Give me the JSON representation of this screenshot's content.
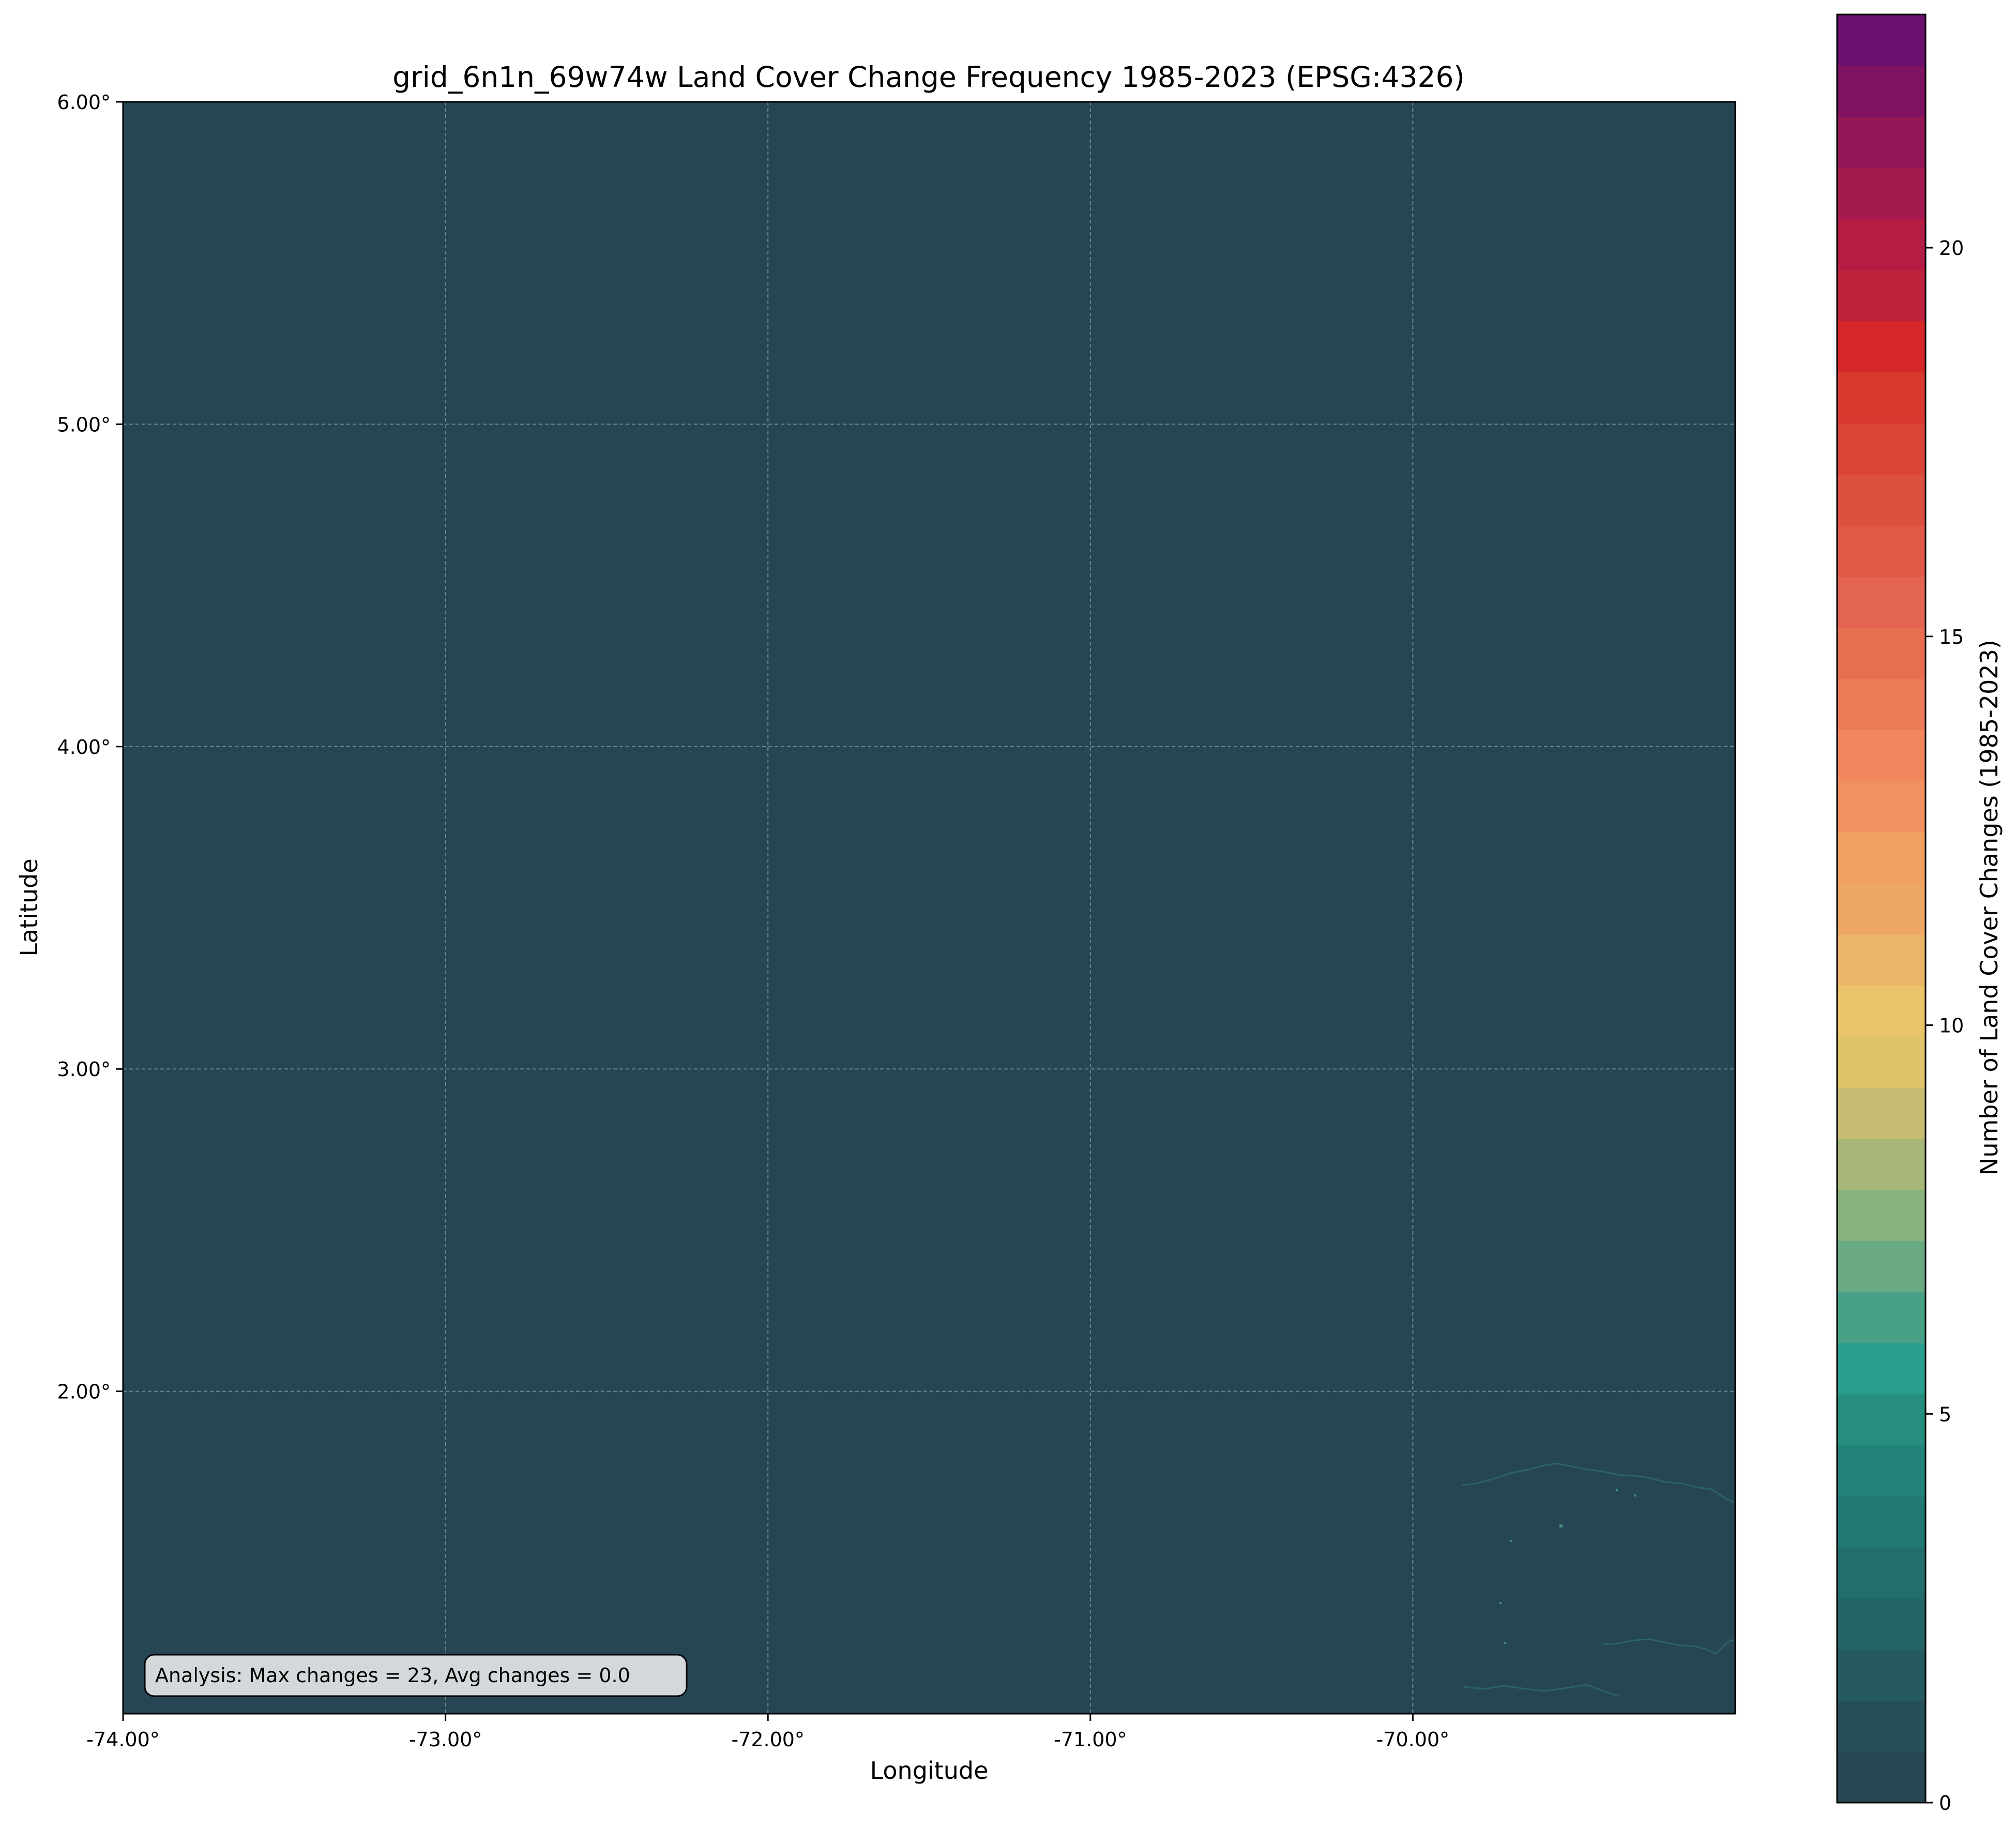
{
  "chart_data": {
    "type": "heatmap",
    "title": "grid_6n1n_69w74w Land Cover Change Frequency 1985-2023 (EPSG:4326)",
    "xlabel": "Longitude",
    "ylabel": "Latitude",
    "xlim": [
      -74.0,
      -69.0
    ],
    "ylim": [
      1.0,
      6.0
    ],
    "x_ticks": [
      -74.0,
      -73.0,
      -72.0,
      -71.0,
      -70.0
    ],
    "x_tick_labels": [
      "-74.00°",
      "-73.00°",
      "-72.00°",
      "-71.00°",
      "-70.00°"
    ],
    "y_ticks": [
      2.0,
      3.0,
      4.0,
      5.0,
      6.0
    ],
    "y_tick_labels": [
      "2.00°",
      "3.00°",
      "4.00°",
      "5.00°",
      "6.00°"
    ],
    "grid": true,
    "background_value": 0,
    "background_color": "#264653",
    "annotation": "Analysis: Max changes = 23, Avg changes = 0.0",
    "annotation_position": "bottom-left",
    "colorbar": {
      "label": "Number of Land Cover Changes (1985-2023)",
      "min": 0,
      "max": 23,
      "ticks": [
        0,
        5,
        10,
        15,
        20
      ],
      "tick_labels": [
        "0",
        "5",
        "10",
        "15",
        "20"
      ],
      "colors": [
        "#264653",
        "#25505a",
        "#245a60",
        "#236467",
        "#226e6e",
        "#217875",
        "#23837a",
        "#278e7e",
        "#2a9d8f",
        "#48a086",
        "#69aa83",
        "#88b27c",
        "#a7b777",
        "#c7bc72",
        "#e0c36a",
        "#e9c46a",
        "#ebb567",
        "#eda665",
        "#f0a062",
        "#f29160",
        "#f2865c",
        "#ee7b57",
        "#e76f51",
        "#e36551",
        "#e15a48",
        "#dd4f3f",
        "#d94537",
        "#d83a30",
        "#d62828",
        "#c0213b",
        "#b41c44",
        "#a4194d",
        "#931656",
        "#7f1362",
        "#6a0f6e"
      ]
    }
  }
}
